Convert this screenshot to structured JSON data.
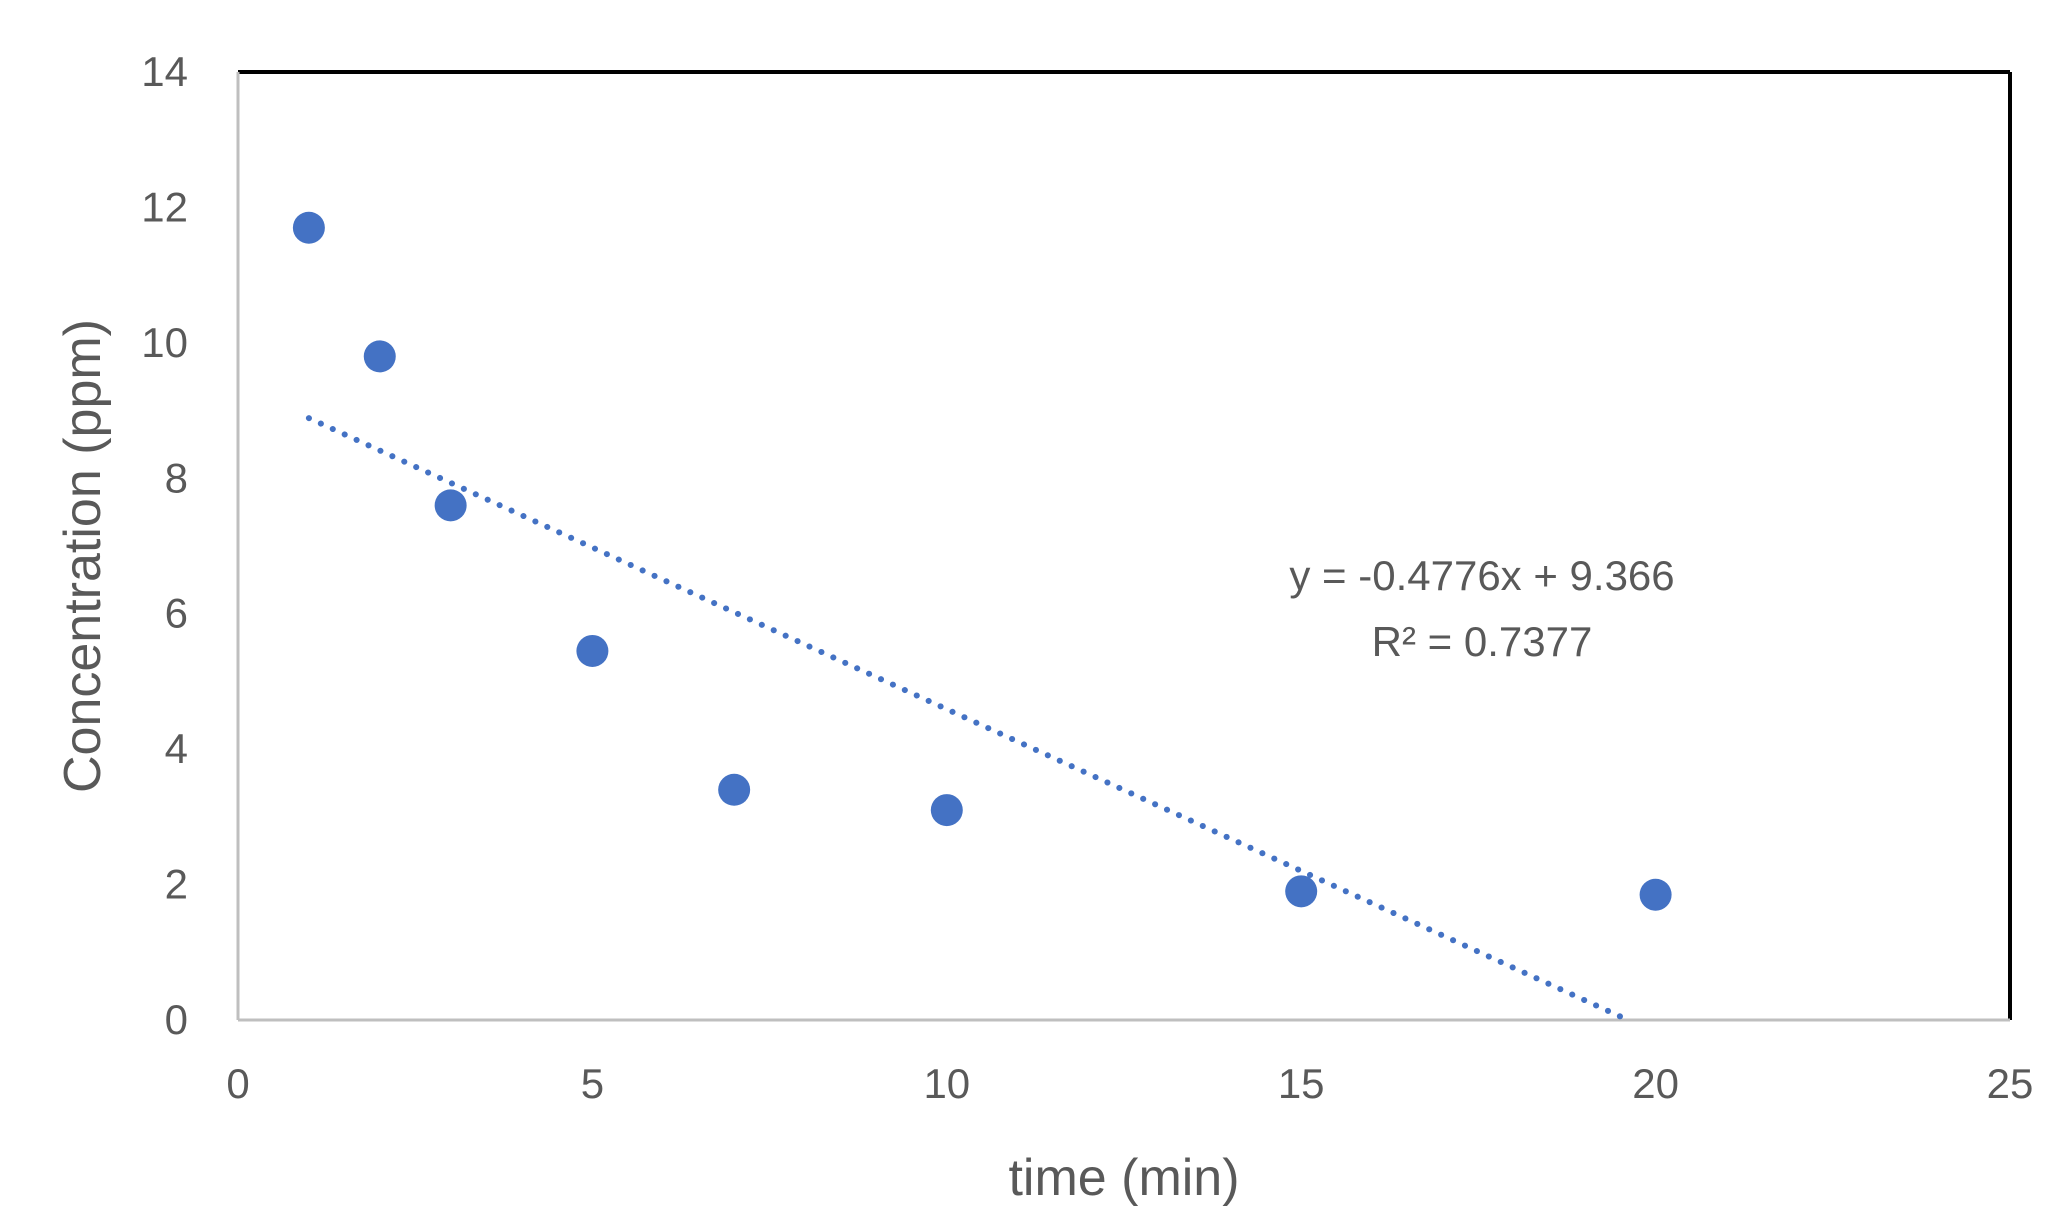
{
  "chart_data": {
    "type": "scatter",
    "title": "",
    "xlabel": "time (min)",
    "ylabel": "Concentration (ppm)",
    "xlim": [
      0,
      25
    ],
    "ylim": [
      0,
      14
    ],
    "xticks": [
      0,
      5,
      10,
      15,
      20,
      25
    ],
    "yticks": [
      0,
      2,
      4,
      6,
      8,
      10,
      12,
      14
    ],
    "grid": false,
    "legend": "none",
    "series": [
      {
        "color": "#4472C4",
        "points": [
          {
            "x": 1,
            "y": 11.7
          },
          {
            "x": 2,
            "y": 9.8
          },
          {
            "x": 3,
            "y": 7.6
          },
          {
            "x": 5,
            "y": 5.45
          },
          {
            "x": 7,
            "y": 3.4
          },
          {
            "x": 10,
            "y": 3.1
          },
          {
            "x": 15,
            "y": 1.9
          },
          {
            "x": 20,
            "y": 1.85
          }
        ]
      }
    ],
    "trendline": {
      "type": "linear",
      "style": "dotted",
      "color": "#4472C4",
      "slope": -0.4776,
      "intercept": 9.366,
      "x_start": 1,
      "x_end": 19.61
    },
    "annotations": [
      "y = -0.4776x + 9.366",
      "R² = 0.7377"
    ]
  }
}
